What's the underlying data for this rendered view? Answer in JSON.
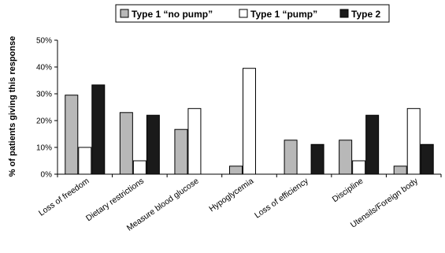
{
  "chart_data": {
    "type": "bar",
    "ylabel": "% of patients giving this response",
    "xlabel": "",
    "ylim": [
      0,
      50
    ],
    "yticks": [
      "0%",
      "10%",
      "20%",
      "30%",
      "40%",
      "50%"
    ],
    "legend_position": "top",
    "categories": [
      "Loss of freedom",
      "Dietary restrictions",
      "Measure blood glucose",
      "Hypoglycemia",
      "Loss of efficiency",
      "Discipline",
      "Utensils/Foreign body"
    ],
    "series": [
      {
        "name": "Type 1 “no pump”",
        "color": "#b8b8b8",
        "values": [
          29.5,
          23,
          16.7,
          3,
          12.7,
          12.7,
          3
        ]
      },
      {
        "name": "Type 1 “pump”",
        "color": "#ffffff",
        "values": [
          10,
          5,
          24.5,
          39.5,
          0,
          5,
          24.5
        ]
      },
      {
        "name": "Type 2",
        "color": "#1a1a1a",
        "values": [
          33.3,
          22,
          0,
          0,
          11.1,
          22,
          11.1
        ]
      }
    ]
  }
}
